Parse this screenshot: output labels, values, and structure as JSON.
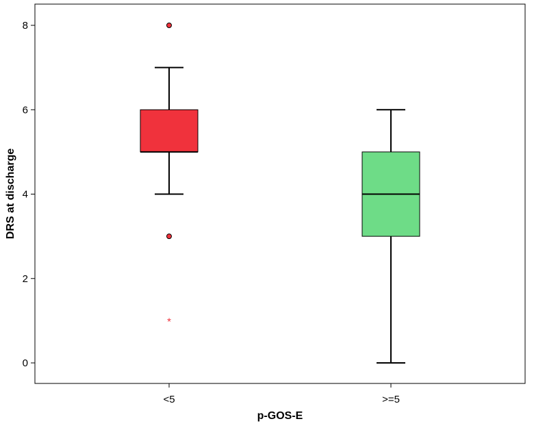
{
  "chart_data": {
    "type": "boxplot",
    "xlabel": "p-GOS-E",
    "ylabel": "DRS at discharge",
    "ylim": [
      -0.5,
      8.5
    ],
    "yticks": [
      "0",
      "2",
      "4",
      "6",
      "8"
    ],
    "ytick_values": [
      0,
      2,
      4,
      6,
      8
    ],
    "categories": [
      "<5",
      ">=5"
    ],
    "colors": [
      "#F0323C",
      "#6EDC87"
    ],
    "boxes": [
      {
        "category": "<5",
        "whisker_low": 4,
        "q1": 5,
        "median": 5,
        "q3": 6,
        "whisker_high": 7,
        "outliers": [
          8,
          3
        ],
        "extremes": [
          1
        ]
      },
      {
        "category": ">=5",
        "whisker_low": 0,
        "q1": 3,
        "median": 4,
        "q3": 5,
        "whisker_high": 6,
        "outliers": [],
        "extremes": []
      }
    ],
    "grid": false,
    "legend": "none"
  }
}
